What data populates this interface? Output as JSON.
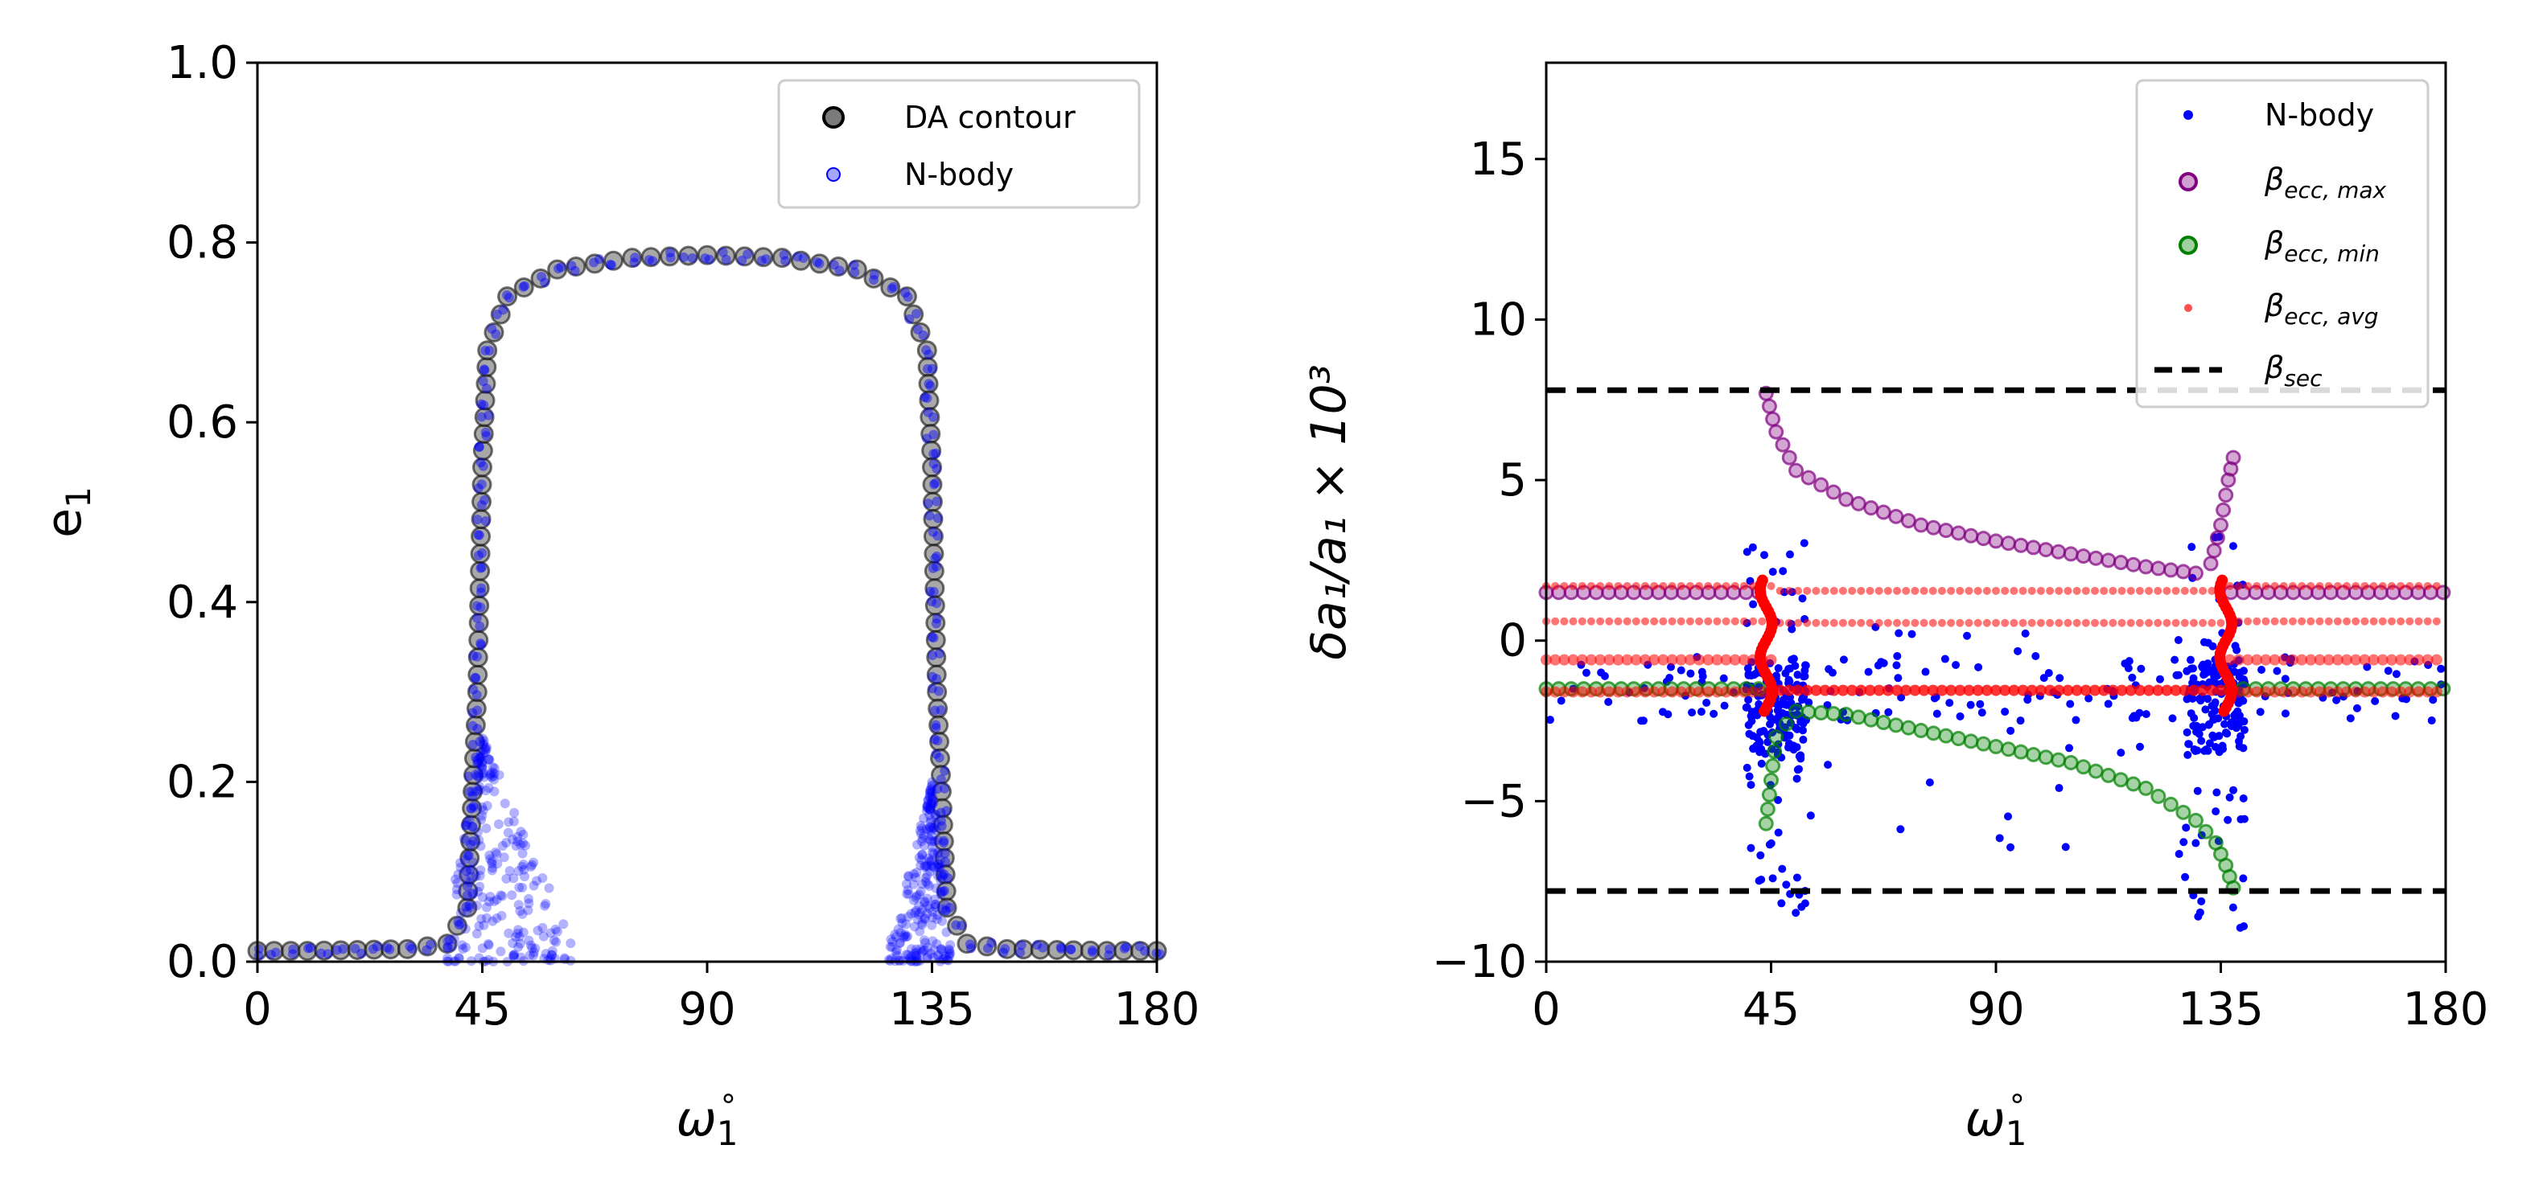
{
  "chart_data": [
    {
      "type": "scatter",
      "panel": "left",
      "xlabel_base": "ω",
      "xlabel_sub": "1",
      "xlabel_sup": "∘",
      "ylabel_base": "e",
      "ylabel_sub": "1",
      "xlim": [
        0,
        180
      ],
      "ylim": [
        0,
        1.0
      ],
      "xticks": [
        "0",
        "45",
        "90",
        "135",
        "180"
      ],
      "xtick_values": [
        0,
        45,
        90,
        135,
        180
      ],
      "yticks": [
        "0.0",
        "0.2",
        "0.4",
        "0.6",
        "0.8",
        "1.0"
      ],
      "ytick_values": [
        0,
        0.2,
        0.4,
        0.6,
        0.8,
        1.0
      ],
      "legend_position": "upper-right",
      "series": [
        {
          "name": "DA contour",
          "color": "#000000",
          "marker": "hollow-circle",
          "description": "closed contour: low-eccentricity plateau e≈0.01 outside the resonance, two nearly vertical walls near ω=45 and ω=135, and an arch peaking at e≈0.785 near ω=90",
          "curve_points": [
            [
              0,
              0.012
            ],
            [
              10,
              0.012
            ],
            [
              20,
              0.013
            ],
            [
              30,
              0.014
            ],
            [
              38,
              0.02
            ],
            [
              42,
              0.06
            ],
            [
              44,
              0.3
            ],
            [
              45,
              0.55
            ],
            [
              46,
              0.68
            ],
            [
              50,
              0.74
            ],
            [
              60,
              0.77
            ],
            [
              75,
              0.783
            ],
            [
              90,
              0.786
            ],
            [
              105,
              0.783
            ],
            [
              120,
              0.77
            ],
            [
              130,
              0.74
            ],
            [
              134,
              0.68
            ],
            [
              135,
              0.55
            ],
            [
              136,
              0.3
            ],
            [
              138,
              0.06
            ],
            [
              142,
              0.02
            ],
            [
              150,
              0.014
            ],
            [
              160,
              0.013
            ],
            [
              170,
              0.012
            ],
            [
              180,
              0.012
            ]
          ]
        },
        {
          "name": "N-body",
          "color": "#0000ff",
          "marker": "filled-circle",
          "description": "N-body points tracing the DA contour, with extra scatter spreading out at low eccentricity near ω≈45–70 and ω≈125–140",
          "extra_clusters": [
            {
              "x_range": [
                38,
                70
              ],
              "e_range": [
                0.0,
                0.25
              ]
            },
            {
              "x_range": [
                125,
                140
              ],
              "e_range": [
                0.0,
                0.2
              ]
            }
          ]
        }
      ]
    },
    {
      "type": "scatter",
      "panel": "right",
      "xlabel_base": "ω",
      "xlabel_sub": "1",
      "xlabel_sup": "∘",
      "ylabel_text": "δa₁/a₁ × 10³",
      "xlim": [
        0,
        180
      ],
      "ylim": [
        -10,
        18
      ],
      "xticks": [
        "0",
        "45",
        "90",
        "135",
        "180"
      ],
      "xtick_values": [
        0,
        45,
        90,
        135,
        180
      ],
      "yticks": [
        "−10",
        "−5",
        "0",
        "5",
        "10",
        "15"
      ],
      "ytick_values": [
        -10,
        -5,
        0,
        5,
        10,
        15
      ],
      "legend_position": "upper-right",
      "legend": [
        {
          "label": "N-body",
          "sub": "",
          "color": "#0000ff",
          "marker": "dot"
        },
        {
          "label": "β",
          "sub": "ecc, max",
          "color": "#800080",
          "marker": "hollow-circle"
        },
        {
          "label": "β",
          "sub": "ecc, min",
          "color": "#008000",
          "marker": "hollow-circle"
        },
        {
          "label": "β",
          "sub": "ecc, avg",
          "color": "#ff0000",
          "marker": "small-dot"
        },
        {
          "label": "β",
          "sub": "sec",
          "color": "#000000",
          "marker": "dashed-line"
        }
      ],
      "beta_sec": [
        7.8,
        -7.8
      ],
      "series": [
        {
          "name": "β_ecc,max outside",
          "color": "#800080",
          "baseline": 1.5,
          "x_ranges": [
            [
              0,
              44
            ],
            [
              137,
              180
            ]
          ]
        },
        {
          "name": "β_ecc,max inside",
          "color": "#800080",
          "arc_points": [
            [
              44,
              7.7
            ],
            [
              46,
              6.5
            ],
            [
              50,
              5.3
            ],
            [
              60,
              4.4
            ],
            [
              75,
              3.6
            ],
            [
              90,
              3.1
            ],
            [
              105,
              2.7
            ],
            [
              120,
              2.3
            ],
            [
              130,
              2.1
            ],
            [
              133,
              2.4
            ],
            [
              135,
              3.6
            ],
            [
              136.5,
              5.0
            ],
            [
              137.5,
              5.7
            ]
          ]
        },
        {
          "name": "β_ecc,min outside",
          "color": "#008000",
          "baseline": -1.5,
          "x_ranges": [
            [
              0,
              44
            ],
            [
              137,
              180
            ]
          ]
        },
        {
          "name": "β_ecc,min inside",
          "color": "#008000",
          "arc_points": [
            [
              44,
              -5.7
            ],
            [
              46,
              -3.0
            ],
            [
              50,
              -2.2
            ],
            [
              60,
              -2.3
            ],
            [
              75,
              -2.8
            ],
            [
              90,
              -3.3
            ],
            [
              105,
              -3.8
            ],
            [
              120,
              -4.6
            ],
            [
              130,
              -5.6
            ],
            [
              134,
              -6.3
            ],
            [
              136,
              -7.0
            ],
            [
              137.5,
              -7.7
            ]
          ]
        },
        {
          "name": "β_ecc,avg",
          "color": "#ff0000",
          "lines": [
            1.7,
            0.6,
            -0.6,
            -1.6
          ],
          "x_ranges": [
            [
              0,
              180
            ]
          ]
        },
        {
          "name": "N-body",
          "color": "#0000ff",
          "clusters": [
            {
              "x_range": [
                0,
                180
              ],
              "y_range": [
                -2.5,
                -0.5
              ],
              "count": 140
            },
            {
              "x_range": [
                40,
                52
              ],
              "y_range": [
                -8.5,
                3.5
              ],
              "count": 180
            },
            {
              "x_range": [
                128,
                140
              ],
              "y_range": [
                -9,
                3.5
              ],
              "count": 160
            },
            {
              "x_range": [
                50,
                130
              ],
              "y_range": [
                -7.5,
                0.5
              ],
              "count": 40
            }
          ]
        }
      ]
    }
  ]
}
